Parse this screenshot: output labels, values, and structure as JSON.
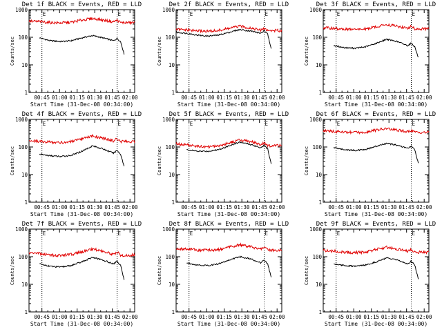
{
  "colors": {
    "events": "#000000",
    "lld": "#e00000",
    "axis": "#000000",
    "background": "#ffffff"
  },
  "chart_data": [
    {
      "type": "line",
      "title": "Det 1f BLACK = Events, RED = LLD",
      "xlabel": "Start Time (31-Dec-08 00:34:00)",
      "ylabel": "Counts/sec",
      "xticks": [
        "00:45",
        "01:00",
        "01:15",
        "01:30",
        "01:45",
        "02:00"
      ],
      "yticks": [
        "1",
        "10",
        "100",
        "1000"
      ],
      "ylim": [
        1,
        1000
      ],
      "yscale": "log",
      "markers": [
        "E",
        "E"
      ],
      "x": [
        "00:34",
        "00:43",
        "00:52",
        "01:01",
        "01:10",
        "01:19",
        "01:28",
        "01:37",
        "01:46",
        "01:49",
        "01:52",
        "01:55",
        "02:04"
      ],
      "series": [
        {
          "name": "Events",
          "values": [
            null,
            95,
            75,
            70,
            75,
            95,
            115,
            95,
            75,
            90,
            70,
            25,
            null
          ]
        },
        {
          "name": "LLD",
          "values": [
            380,
            370,
            340,
            330,
            350,
            420,
            480,
            420,
            360,
            420,
            340,
            340,
            340
          ]
        }
      ]
    },
    {
      "type": "line",
      "title": "Det 2f BLACK = Events, RED = LLD",
      "xlabel": "Start Time (31-Dec-08 00:34:00)",
      "ylabel": "Counts/sec",
      "xticks": [
        "00:45",
        "01:00",
        "01:15",
        "01:30",
        "01:45",
        "02:00"
      ],
      "yticks": [
        "1",
        "10",
        "100",
        "1000"
      ],
      "ylim": [
        1,
        1000
      ],
      "yscale": "log",
      "markers": [
        "E",
        "E"
      ],
      "x": [
        "00:34",
        "00:43",
        "00:52",
        "01:01",
        "01:10",
        "01:19",
        "01:28",
        "01:37",
        "01:46",
        "01:49",
        "01:52",
        "01:55",
        "02:04"
      ],
      "series": [
        {
          "name": "Events",
          "values": [
            150,
            140,
            120,
            110,
            120,
            150,
            190,
            170,
            140,
            170,
            130,
            40,
            null
          ]
        },
        {
          "name": "LLD",
          "values": [
            190,
            185,
            170,
            165,
            175,
            210,
            250,
            220,
            180,
            210,
            175,
            175,
            175
          ]
        }
      ]
    },
    {
      "type": "line",
      "title": "Det 3f BLACK = Events, RED = LLD",
      "xlabel": "Start Time (31-Dec-08 00:34:00)",
      "ylabel": "Counts/sec",
      "xticks": [
        "00:45",
        "01:00",
        "01:15",
        "01:30",
        "01:45",
        "02:00"
      ],
      "yticks": [
        "1",
        "10",
        "100",
        "1000"
      ],
      "ylim": [
        1,
        1000
      ],
      "yscale": "log",
      "markers": [
        "E",
        "E"
      ],
      "x": [
        "00:34",
        "00:43",
        "00:52",
        "01:01",
        "01:10",
        "01:19",
        "01:28",
        "01:37",
        "01:46",
        "01:49",
        "01:52",
        "01:55",
        "02:04"
      ],
      "series": [
        {
          "name": "Events",
          "values": [
            null,
            50,
            42,
            40,
            45,
            60,
            85,
            70,
            50,
            62,
            45,
            18,
            null
          ]
        },
        {
          "name": "LLD",
          "values": [
            220,
            210,
            195,
            190,
            200,
            240,
            290,
            250,
            210,
            250,
            200,
            200,
            200
          ]
        }
      ]
    },
    {
      "type": "line",
      "title": "Det 4f BLACK = Events, RED = LLD",
      "xlabel": "Start Time (31-Dec-08 00:34:00)",
      "ylabel": "Counts/sec",
      "xticks": [
        "00:45",
        "01:00",
        "01:15",
        "01:30",
        "01:45",
        "02:00"
      ],
      "yticks": [
        "1",
        "10",
        "100",
        "1000"
      ],
      "ylim": [
        1,
        1000
      ],
      "yscale": "log",
      "markers": [
        "E",
        "E"
      ],
      "x": [
        "00:34",
        "00:43",
        "00:52",
        "01:01",
        "01:10",
        "01:19",
        "01:28",
        "01:37",
        "01:46",
        "01:49",
        "01:52",
        "01:55",
        "02:04"
      ],
      "series": [
        {
          "name": "Events",
          "values": [
            null,
            55,
            48,
            45,
            50,
            70,
            110,
            85,
            60,
            75,
            55,
            20,
            null
          ]
        },
        {
          "name": "LLD",
          "values": [
            170,
            160,
            150,
            145,
            155,
            190,
            250,
            210,
            165,
            200,
            160,
            155,
            155
          ]
        }
      ]
    },
    {
      "type": "line",
      "title": "Det 5f BLACK = Events, RED = LLD",
      "xlabel": "Start Time (31-Dec-08 00:34:00)",
      "ylabel": "Counts/sec",
      "xticks": [
        "00:45",
        "01:00",
        "01:15",
        "01:30",
        "01:45",
        "02:00"
      ],
      "yticks": [
        "1",
        "10",
        "100",
        "1000"
      ],
      "ylim": [
        1,
        1000
      ],
      "yscale": "log",
      "markers": [
        "E",
        "E"
      ],
      "x": [
        "00:34",
        "00:43",
        "00:52",
        "01:01",
        "01:10",
        "01:19",
        "01:28",
        "01:37",
        "01:46",
        "01:49",
        "01:52",
        "01:55",
        "02:04"
      ],
      "series": [
        {
          "name": "Events",
          "values": [
            null,
            80,
            70,
            70,
            80,
            110,
            150,
            125,
            95,
            115,
            85,
            25,
            null
          ]
        },
        {
          "name": "LLD",
          "values": [
            130,
            120,
            105,
            100,
            110,
            140,
            180,
            160,
            120,
            145,
            110,
            110,
            115
          ]
        }
      ]
    },
    {
      "type": "line",
      "title": "Det 6f BLACK = Events, RED = LLD",
      "xlabel": "Start Time (31-Dec-08 00:34:00)",
      "ylabel": "Counts/sec",
      "xticks": [
        "00:45",
        "01:00",
        "01:15",
        "01:30",
        "01:45",
        "02:00"
      ],
      "yticks": [
        "1",
        "10",
        "100",
        "1000"
      ],
      "ylim": [
        1,
        1000
      ],
      "yscale": "log",
      "markers": [
        "E",
        "E"
      ],
      "x": [
        "00:34",
        "00:43",
        "00:52",
        "01:01",
        "01:10",
        "01:19",
        "01:28",
        "01:37",
        "01:46",
        "01:49",
        "01:52",
        "01:55",
        "02:04"
      ],
      "series": [
        {
          "name": "Events",
          "values": [
            null,
            95,
            80,
            75,
            82,
            105,
            135,
            115,
            90,
            105,
            80,
            25,
            null
          ]
        },
        {
          "name": "LLD",
          "values": [
            380,
            370,
            345,
            335,
            350,
            410,
            460,
            410,
            360,
            400,
            340,
            340,
            340
          ]
        }
      ]
    },
    {
      "type": "line",
      "title": "Det 7f BLACK = Events, RED = LLD",
      "xlabel": "Start Time (31-Dec-08 00:34:00)",
      "ylabel": "Counts/sec",
      "xticks": [
        "00:45",
        "01:00",
        "01:15",
        "01:30",
        "01:45",
        "02:00"
      ],
      "yticks": [
        "1",
        "10",
        "100",
        "1000"
      ],
      "ylim": [
        1,
        1000
      ],
      "yscale": "log",
      "markers": [
        "E",
        "E"
      ],
      "x": [
        "00:34",
        "00:43",
        "00:52",
        "01:01",
        "01:10",
        "01:19",
        "01:28",
        "01:37",
        "01:46",
        "01:49",
        "01:52",
        "01:55",
        "02:04"
      ],
      "series": [
        {
          "name": "Events",
          "values": [
            null,
            55,
            45,
            42,
            48,
            65,
            95,
            75,
            55,
            70,
            48,
            15,
            null
          ]
        },
        {
          "name": "LLD",
          "values": [
            140,
            130,
            115,
            110,
            120,
            150,
            190,
            160,
            120,
            150,
            110,
            110,
            115
          ]
        }
      ]
    },
    {
      "type": "line",
      "title": "Det 8f BLACK = Events, RED = LLD",
      "xlabel": "Start Time (31-Dec-08 00:34:00)",
      "ylabel": "Counts/sec",
      "xticks": [
        "00:45",
        "01:00",
        "01:15",
        "01:30",
        "01:45",
        "02:00"
      ],
      "yticks": [
        "1",
        "10",
        "100",
        "1000"
      ],
      "ylim": [
        1,
        1000
      ],
      "yscale": "log",
      "markers": [
        "E",
        "E"
      ],
      "x": [
        "00:34",
        "00:43",
        "00:52",
        "01:01",
        "01:10",
        "01:19",
        "01:28",
        "01:37",
        "01:46",
        "01:49",
        "01:52",
        "01:55",
        "02:04"
      ],
      "series": [
        {
          "name": "Events",
          "values": [
            null,
            60,
            50,
            48,
            55,
            75,
            100,
            85,
            60,
            75,
            55,
            18,
            null
          ]
        },
        {
          "name": "LLD",
          "values": [
            200,
            190,
            175,
            170,
            180,
            220,
            270,
            230,
            185,
            220,
            175,
            170,
            170
          ]
        }
      ]
    },
    {
      "type": "line",
      "title": "Det 9f BLACK = Events, RED = LLD",
      "xlabel": "Start Time (31-Dec-08 00:34:00)",
      "ylabel": "Counts/sec",
      "xticks": [
        "00:45",
        "01:00",
        "01:15",
        "01:30",
        "01:45",
        "02:00"
      ],
      "yticks": [
        "1",
        "10",
        "100",
        "1000"
      ],
      "ylim": [
        1,
        1000
      ],
      "yscale": "log",
      "markers": [
        "E",
        "E"
      ],
      "x": [
        "00:34",
        "00:43",
        "00:52",
        "01:01",
        "01:10",
        "01:19",
        "01:28",
        "01:37",
        "01:46",
        "01:49",
        "01:52",
        "01:55",
        "02:04"
      ],
      "series": [
        {
          "name": "Events",
          "values": [
            null,
            55,
            48,
            45,
            50,
            65,
            90,
            75,
            55,
            70,
            50,
            15,
            null
          ]
        },
        {
          "name": "LLD",
          "values": [
            170,
            160,
            145,
            140,
            150,
            180,
            220,
            190,
            155,
            185,
            145,
            145,
            145
          ]
        }
      ]
    }
  ]
}
